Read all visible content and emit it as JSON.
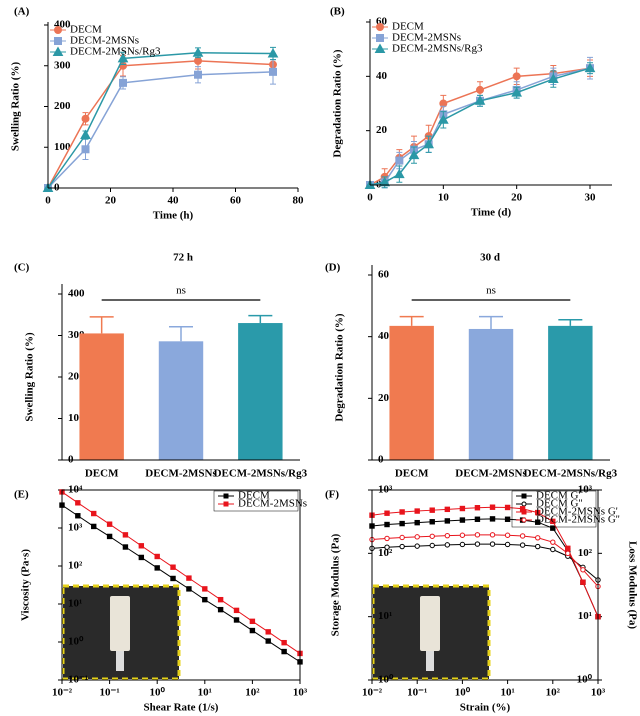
{
  "chart_data": [
    {
      "type": "line",
      "panel": "(A)",
      "xlabel": "Time (h)",
      "ylabel": "Swelling Ratio (%)",
      "x": [
        0,
        12,
        24,
        48,
        72
      ],
      "xlim": [
        0,
        80
      ],
      "xticks": [
        0,
        20,
        40,
        60,
        80
      ],
      "ylim": [
        0,
        400
      ],
      "yticks": [
        0,
        100,
        200,
        300,
        400
      ],
      "legend": "upper left",
      "series": [
        {
          "name": "DECM",
          "color": "#ec7455",
          "marker": "circle",
          "filled": true,
          "values": [
            0,
            170,
            300,
            312,
            303
          ],
          "errors": [
            0,
            15,
            25,
            20,
            20
          ]
        },
        {
          "name": "DECM-2MSNs",
          "color": "#86a3d6",
          "marker": "square",
          "filled": true,
          "values": [
            0,
            95,
            258,
            278,
            285
          ],
          "errors": [
            0,
            25,
            15,
            20,
            30
          ]
        },
        {
          "name": "DECM-2MSNs/Rg3",
          "color": "#2b98a6",
          "marker": "triangle",
          "filled": true,
          "values": [
            0,
            130,
            318,
            332,
            330
          ],
          "errors": [
            0,
            10,
            15,
            12,
            15
          ]
        }
      ]
    },
    {
      "type": "line",
      "panel": "(B)",
      "xlabel": "Time (d)",
      "ylabel": "Degradation Ratio (%)",
      "x": [
        0,
        2,
        4,
        6,
        8,
        10,
        15,
        20,
        25,
        30
      ],
      "xlim": [
        0,
        33
      ],
      "xticks": [
        0,
        10,
        20,
        30
      ],
      "ylim": [
        0,
        60
      ],
      "yticks": [
        0,
        20,
        40,
        60
      ],
      "legend": "upper left",
      "series": [
        {
          "name": "DECM",
          "color": "#ec7455",
          "marker": "circle",
          "filled": true,
          "values": [
            0,
            3,
            10,
            14,
            18,
            30,
            35,
            40,
            41,
            43
          ],
          "errors": [
            0,
            3,
            3,
            4,
            4,
            3,
            3,
            3,
            3,
            3
          ]
        },
        {
          "name": "DECM-2MSNs",
          "color": "#86a3d6",
          "marker": "square",
          "filled": true,
          "values": [
            0,
            1,
            9,
            13,
            15,
            26,
            31,
            35,
            40,
            43
          ],
          "errors": [
            0,
            2,
            3,
            3,
            3,
            3,
            2,
            3,
            3,
            4
          ]
        },
        {
          "name": "DECM-2MSNs/Rg3",
          "color": "#2b98a6",
          "marker": "triangle",
          "filled": true,
          "values": [
            0,
            1,
            4,
            11,
            15,
            24,
            31,
            34,
            39,
            43
          ],
          "errors": [
            0,
            2,
            3,
            3,
            3,
            3,
            2,
            2,
            3,
            2
          ]
        }
      ]
    },
    {
      "type": "bar",
      "panel": "(C)",
      "title": "72 h",
      "annotation": "ns",
      "ylabel": "Swelling Ratio (%)",
      "categories": [
        "DECM",
        "DECM-2MSNs",
        "DECM-2MSNs/Rg3"
      ],
      "values": [
        305,
        286,
        330
      ],
      "errors": [
        40,
        35,
        18
      ],
      "colors": [
        "#f07a50",
        "#8aa8dc",
        "#2a9aaa"
      ],
      "ylim": [
        0,
        400
      ],
      "yticks": [
        0,
        100,
        200,
        300,
        400
      ]
    },
    {
      "type": "bar",
      "panel": "(D)",
      "title": "30 d",
      "annotation": "ns",
      "ylabel": "Degradation Ratio (%)",
      "categories": [
        "DECM",
        "DECM-2MSNs",
        "DECM-2MSNs/Rg3"
      ],
      "values": [
        43.5,
        42.5,
        43.5
      ],
      "errors": [
        3,
        4,
        2
      ],
      "colors": [
        "#f07a50",
        "#8aa8dc",
        "#2a9aaa"
      ],
      "ylim": [
        0,
        60
      ],
      "yticks": [
        0,
        20,
        40,
        60
      ]
    },
    {
      "type": "line",
      "panel": "(E)",
      "xlabel": "Shear Rate (1/s)",
      "ylabel": "Viscosity (Pa·s)",
      "xscale": "log",
      "yscale": "log",
      "legend": "upper right",
      "x": [
        0.01,
        0.0215,
        0.0464,
        0.1,
        0.215,
        0.464,
        1,
        2.15,
        4.64,
        10,
        21.5,
        46.4,
        100,
        215,
        464,
        1000
      ],
      "xlim": [
        0.01,
        1000
      ],
      "xticks": [
        {
          "value": 0.01,
          "label": "10⁻²"
        },
        {
          "value": 0.1,
          "label": "10⁻¹"
        },
        {
          "value": 1,
          "label": "10⁰"
        },
        {
          "value": 10,
          "label": "10¹"
        },
        {
          "value": 100,
          "label": "10²"
        },
        {
          "value": 1000,
          "label": "10³"
        }
      ],
      "ylim": [
        0.1,
        10000
      ],
      "yticks": [
        {
          "value": 0.1,
          "label": "10⁻¹"
        },
        {
          "value": 1,
          "label": "10⁰"
        },
        {
          "value": 10,
          "label": "10¹"
        },
        {
          "value": 100,
          "label": "10²"
        },
        {
          "value": 1000,
          "label": "10³"
        },
        {
          "value": 10000,
          "label": "10⁴"
        }
      ],
      "series": [
        {
          "name": "DECM",
          "color": "#000000",
          "marker": "square",
          "filled": true,
          "values": [
            4000,
            2100,
            1100,
            600,
            316,
            168,
            89,
            47,
            25,
            13,
            7.1,
            3.8,
            2.0,
            1.06,
            0.56,
            0.3
          ]
        },
        {
          "name": "DECM-2MSNs",
          "color": "#e8141c",
          "marker": "square",
          "filled": true,
          "values": [
            8900,
            4600,
            2400,
            1260,
            660,
            340,
            178,
            93,
            48,
            25,
            13,
            6.8,
            3.5,
            1.85,
            0.96,
            0.5
          ]
        }
      ]
    },
    {
      "type": "line",
      "panel": "(F)",
      "xlabel": "Strain (%)",
      "ylabel": "Storage Modulus (Pa)",
      "y2label": "Loss Modulus (Pa)",
      "xscale": "log",
      "yscale": "log",
      "legend": "upper right",
      "x": [
        0.01,
        0.0215,
        0.0464,
        0.1,
        0.215,
        0.464,
        1,
        2.15,
        4.64,
        10,
        21.5,
        46.4,
        100,
        215,
        464,
        1000
      ],
      "xlim": [
        0.01,
        1000
      ],
      "xticks": [
        {
          "value": 0.01,
          "label": "10⁻²"
        },
        {
          "value": 0.1,
          "label": "10⁻¹"
        },
        {
          "value": 1,
          "label": "10⁰"
        },
        {
          "value": 10,
          "label": "10¹"
        },
        {
          "value": 100,
          "label": "10²"
        },
        {
          "value": 1000,
          "label": "10³"
        }
      ],
      "ylim": [
        1,
        1000
      ],
      "yticks": [
        {
          "value": 1,
          "label": "10⁰"
        },
        {
          "value": 10,
          "label": "10¹"
        },
        {
          "value": 100,
          "label": "10²"
        },
        {
          "value": 1000,
          "label": "10³"
        }
      ],
      "y2lim": [
        1,
        1000
      ],
      "y2ticks": [
        {
          "value": 1,
          "label": "10⁰"
        },
        {
          "value": 10,
          "label": "10¹"
        },
        {
          "value": 100,
          "label": "10²"
        },
        {
          "value": 1000,
          "label": "10³"
        }
      ],
      "series": [
        {
          "name": "DECM G'",
          "color": "#000000",
          "marker": "square",
          "filled": true,
          "values": [
            270,
            285,
            295,
            305,
            315,
            325,
            335,
            345,
            350,
            345,
            335,
            310,
            250,
            110,
            35,
            10
          ]
        },
        {
          "name": "DECM G''",
          "color": "#000000",
          "marker": "circle",
          "filled": false,
          "axis": "y2",
          "values": [
            120,
            125,
            128,
            130,
            133,
            136,
            138,
            140,
            140,
            138,
            135,
            128,
            115,
            90,
            60,
            38
          ]
        },
        {
          "name": "DECM-2MSNs G'",
          "color": "#e8141c",
          "marker": "square",
          "filled": true,
          "values": [
            400,
            430,
            450,
            465,
            480,
            495,
            510,
            525,
            535,
            530,
            505,
            440,
            320,
            120,
            35,
            10
          ]
        },
        {
          "name": "DECM-2MSNs G''",
          "color": "#e8141c",
          "marker": "circle",
          "filled": false,
          "axis": "y2",
          "values": [
            165,
            172,
            178,
            182,
            186,
            190,
            193,
            196,
            196,
            193,
            188,
            176,
            150,
            100,
            55,
            30
          ]
        }
      ]
    }
  ]
}
